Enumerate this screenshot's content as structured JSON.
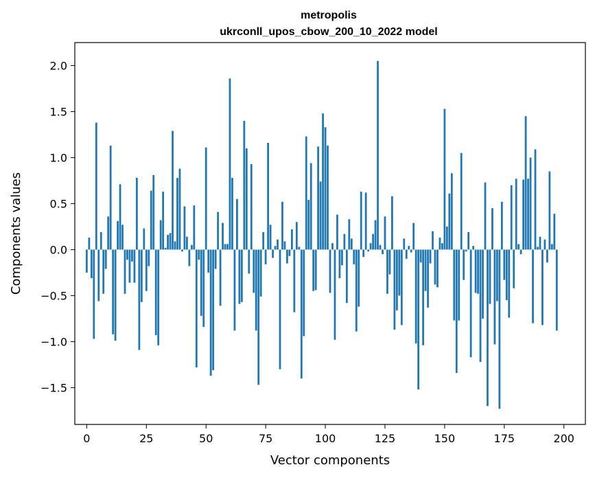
{
  "chart_data": {
    "type": "bar",
    "title": "metropolis",
    "subtitle": "ukrconll_upos_cbow_200_10_2022 model",
    "xlabel": "Vector components",
    "ylabel": "Components values",
    "xlim": [
      -5,
      209
    ],
    "ylim": [
      -1.9,
      2.25
    ],
    "xticks": [
      0,
      25,
      50,
      75,
      100,
      125,
      150,
      175,
      200
    ],
    "yticks": [
      -1.5,
      -1.0,
      -0.5,
      0.0,
      0.5,
      1.0,
      1.5,
      2.0
    ],
    "ytick_labels": [
      "−1.5",
      "−1.0",
      "−0.5",
      "0.0",
      "0.5",
      "1.0",
      "1.5",
      "2.0"
    ],
    "bar_color": "#1f77b4",
    "grid": false,
    "values": [
      -0.25,
      0.13,
      -0.31,
      -0.97,
      1.38,
      -0.56,
      0.19,
      -0.48,
      -0.21,
      0.36,
      1.13,
      -0.92,
      -0.99,
      0.31,
      0.71,
      0.27,
      -0.48,
      -0.11,
      -0.36,
      -0.13,
      -0.36,
      0.78,
      -1.09,
      -0.57,
      0.23,
      -0.45,
      -0.18,
      0.64,
      0.81,
      -0.93,
      -1.04,
      0.32,
      0.63,
      0.02,
      0.16,
      0.18,
      1.29,
      0.09,
      0.78,
      0.88,
      -0.02,
      0.47,
      0.14,
      -0.18,
      0.05,
      0.48,
      -1.28,
      -0.11,
      -0.72,
      -0.84,
      1.11,
      -0.25,
      -1.37,
      -1.31,
      -0.21,
      0.41,
      -0.61,
      0.29,
      0.06,
      0.06,
      1.86,
      0.78,
      -0.88,
      0.55,
      -0.59,
      -0.57,
      1.4,
      1.1,
      -0.26,
      0.93,
      -0.47,
      -0.88,
      -1.47,
      -0.51,
      0.19,
      -0.16,
      1.16,
      0.27,
      -0.09,
      0.04,
      0.11,
      -1.3,
      0.52,
      0.09,
      -0.15,
      -0.07,
      0.22,
      -0.68,
      0.3,
      0.03,
      -1.4,
      -0.94,
      1.23,
      0.54,
      0.94,
      -0.45,
      -0.44,
      1.12,
      0.74,
      1.48,
      1.33,
      1.13,
      -0.47,
      0.07,
      -0.98,
      0.38,
      -0.31,
      -0.17,
      0.17,
      -0.58,
      0.33,
      0.12,
      -0.16,
      -0.89,
      -0.62,
      0.63,
      -0.08,
      0.62,
      -0.02,
      0.07,
      0.17,
      0.32,
      2.05,
      0.05,
      -0.05,
      0.36,
      -0.48,
      -0.27,
      0.58,
      -0.87,
      -0.66,
      -0.5,
      -0.82,
      0.12,
      -0.1,
      0.04,
      -0.03,
      0.29,
      -1.02,
      -1.52,
      -0.14,
      -1.04,
      -0.45,
      -0.63,
      -0.15,
      0.2,
      -0.38,
      -0.41,
      0.13,
      0.07,
      1.53,
      0.25,
      0.61,
      0.83,
      -0.77,
      -1.34,
      -0.77,
      1.05,
      -0.33,
      -0.02,
      0.19,
      -1.17,
      0.04,
      -0.47,
      -0.48,
      -1.22,
      -0.75,
      0.73,
      -1.7,
      -0.59,
      0.45,
      -1.03,
      -0.56,
      -1.73,
      0.52,
      -0.33,
      -0.55,
      -0.74,
      0.7,
      -0.42,
      0.77,
      0.06,
      -0.05,
      0.76,
      1.45,
      0.77,
      1.0,
      -0.8,
      1.09,
      0.03,
      0.14,
      -0.82,
      0.11,
      -0.14,
      0.85,
      0.06,
      0.39,
      -0.88
    ]
  }
}
